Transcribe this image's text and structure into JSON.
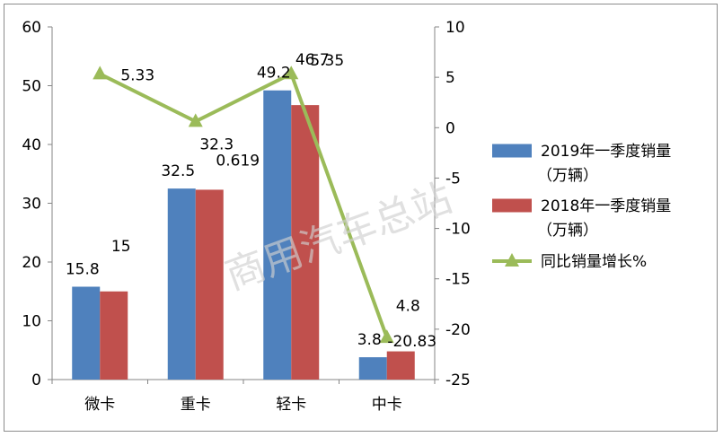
{
  "chart_data": {
    "type": "bar",
    "categories": [
      "微卡",
      "重卡",
      "轻卡",
      "中卡"
    ],
    "series": [
      {
        "name": "2019年一季度销量（万辆）",
        "kind": "bar",
        "axis": "left",
        "color": "#4f81bd",
        "values": [
          15.8,
          32.5,
          49.2,
          3.8
        ],
        "labels": [
          "15.8",
          "32.5",
          "49.2",
          "3.8"
        ]
      },
      {
        "name": "2018年一季度销量（万辆）",
        "kind": "bar",
        "axis": "left",
        "color": "#c0504d",
        "values": [
          15,
          32.3,
          46.7,
          4.8
        ],
        "labels": [
          "15",
          "32.3",
          "46.7",
          "4.8"
        ]
      },
      {
        "name": "同比销量增长%",
        "kind": "line",
        "axis": "right",
        "color": "#9bbb59",
        "values": [
          5.33,
          0.619,
          5.35,
          -20.83
        ],
        "labels": [
          "5.33",
          "0.619",
          "5.35",
          "-20.83"
        ]
      }
    ],
    "legend": [
      {
        "line1": "2019年一季度销量",
        "line2": "（万辆）"
      },
      {
        "line1": "2018年一季度销量",
        "line2": "（万辆）"
      },
      {
        "line1": "同比销量增长%"
      }
    ],
    "left_axis": {
      "min": 0,
      "max": 60,
      "ticks": [
        "0",
        "10",
        "20",
        "30",
        "40",
        "50",
        "60"
      ]
    },
    "right_axis": {
      "min": -25,
      "max": 10,
      "ticks": [
        "-25",
        "-20",
        "-15",
        "-10",
        "-5",
        "0",
        "5",
        "10"
      ]
    },
    "legend_position": "right",
    "grid": false,
    "watermark": "商用汽车总站"
  }
}
